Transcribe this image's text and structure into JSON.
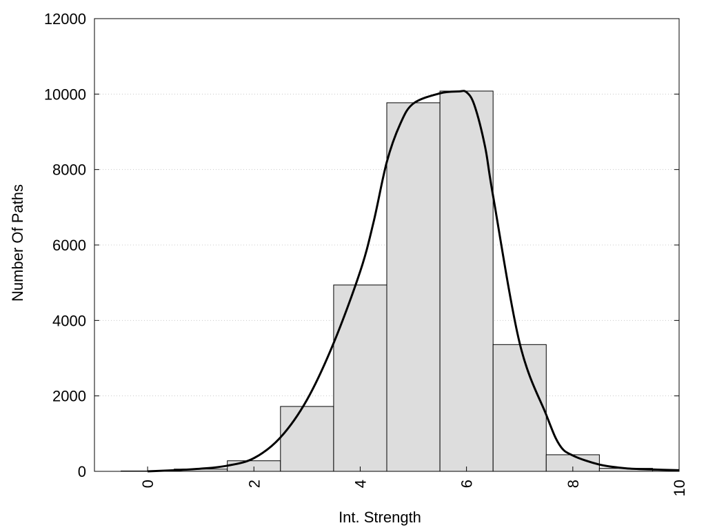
{
  "chart_data": {
    "type": "bar",
    "xlabel": "Int. Strength",
    "ylabel": "Number Of Paths",
    "xlim": [
      -1,
      10
    ],
    "ylim": [
      0,
      12000
    ],
    "xticks": [
      0,
      2,
      4,
      6,
      8,
      10
    ],
    "yticks": [
      0,
      2000,
      4000,
      6000,
      8000,
      10000,
      12000
    ],
    "grid": "horizontal-dotted",
    "bar_fill": "#dddddd",
    "bar_stroke": "#000000",
    "bars": [
      {
        "x": 0,
        "value": 10
      },
      {
        "x": 1,
        "value": 60
      },
      {
        "x": 2,
        "value": 280
      },
      {
        "x": 3,
        "value": 1720
      },
      {
        "x": 4,
        "value": 4940
      },
      {
        "x": 5,
        "value": 9770
      },
      {
        "x": 6,
        "value": 10080
      },
      {
        "x": 7,
        "value": 3360
      },
      {
        "x": 8,
        "value": 440
      },
      {
        "x": 9,
        "value": 80
      },
      {
        "x": 10,
        "value": 30
      }
    ],
    "curve": {
      "x": [
        0,
        0.5,
        1,
        1.5,
        2,
        2.5,
        3,
        3.5,
        4,
        4.25,
        4.5,
        4.75,
        5,
        5.5,
        5.85,
        6,
        6.15,
        6.35,
        6.5,
        7,
        7.5,
        7.75,
        8,
        8.5,
        9,
        9.5,
        10
      ],
      "y": [
        0,
        30,
        70,
        150,
        350,
        900,
        1900,
        3400,
        5300,
        6600,
        8200,
        9200,
        9750,
        10020,
        10070,
        10050,
        9700,
        8600,
        7300,
        3400,
        1500,
        700,
        420,
        180,
        80,
        50,
        30
      ]
    }
  }
}
